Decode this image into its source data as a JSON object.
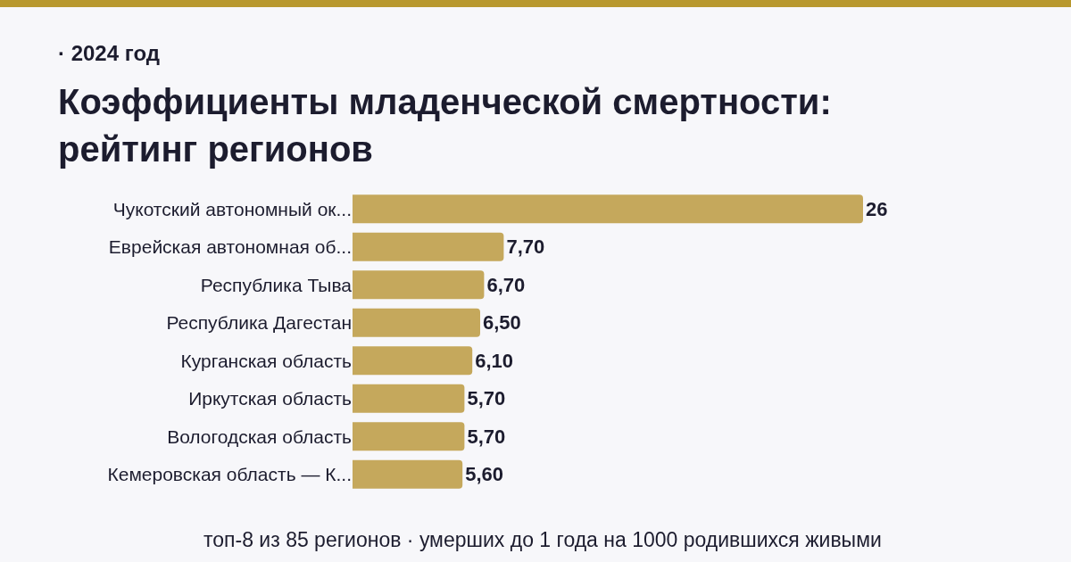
{
  "chart_data": {
    "type": "bar",
    "orientation": "horizontal",
    "subtitle": "· 2024 год",
    "title": "Коэффициенты младенческой смертности: рейтинг регионов",
    "categories": [
      "Чукотский автономный ок...",
      "Еврейская автономная об...",
      "Республика Тыва",
      "Республика Дагестан",
      "Курганская область",
      "Иркутская область",
      "Вологодская область",
      "Кемеровская область — К..."
    ],
    "values": [
      26,
      7.7,
      6.7,
      6.5,
      6.1,
      5.7,
      5.7,
      5.6
    ],
    "value_labels": [
      "26",
      "7,70",
      "6,70",
      "6,50",
      "6,10",
      "5,70",
      "5,70",
      "5,60"
    ],
    "color": "#c5a85c",
    "legend": false,
    "annotations": [
      "топ-8 из 85 регионов · умерших до 1 года на 1000 родившихся живыми"
    ]
  }
}
